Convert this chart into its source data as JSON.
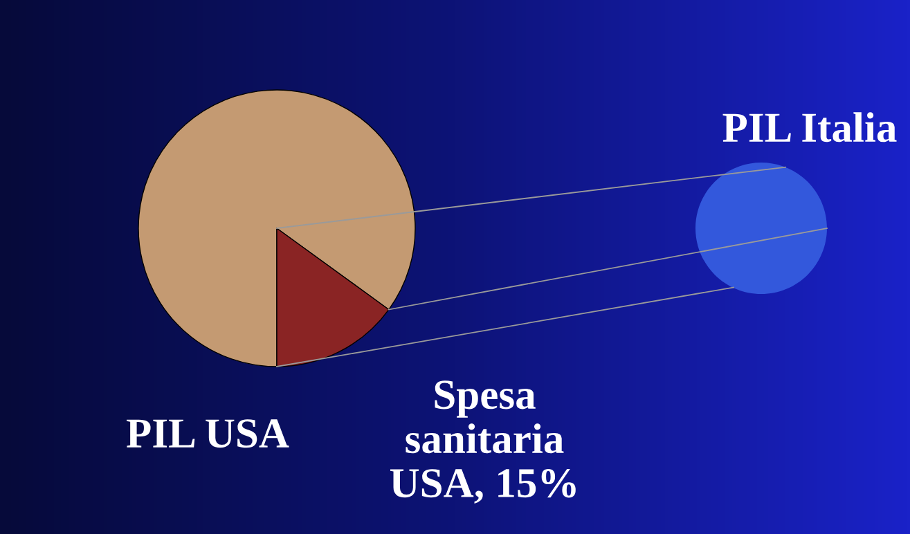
{
  "chart_data": {
    "type": "pie",
    "categories": [
      "PIL USA",
      "Spesa\nsanitaria\nUSA, 15%"
    ],
    "values": [
      85,
      15
    ],
    "colors": [
      "#c49a72",
      "#8a2424"
    ],
    "annotations": [
      "PIL Italia"
    ]
  }
}
